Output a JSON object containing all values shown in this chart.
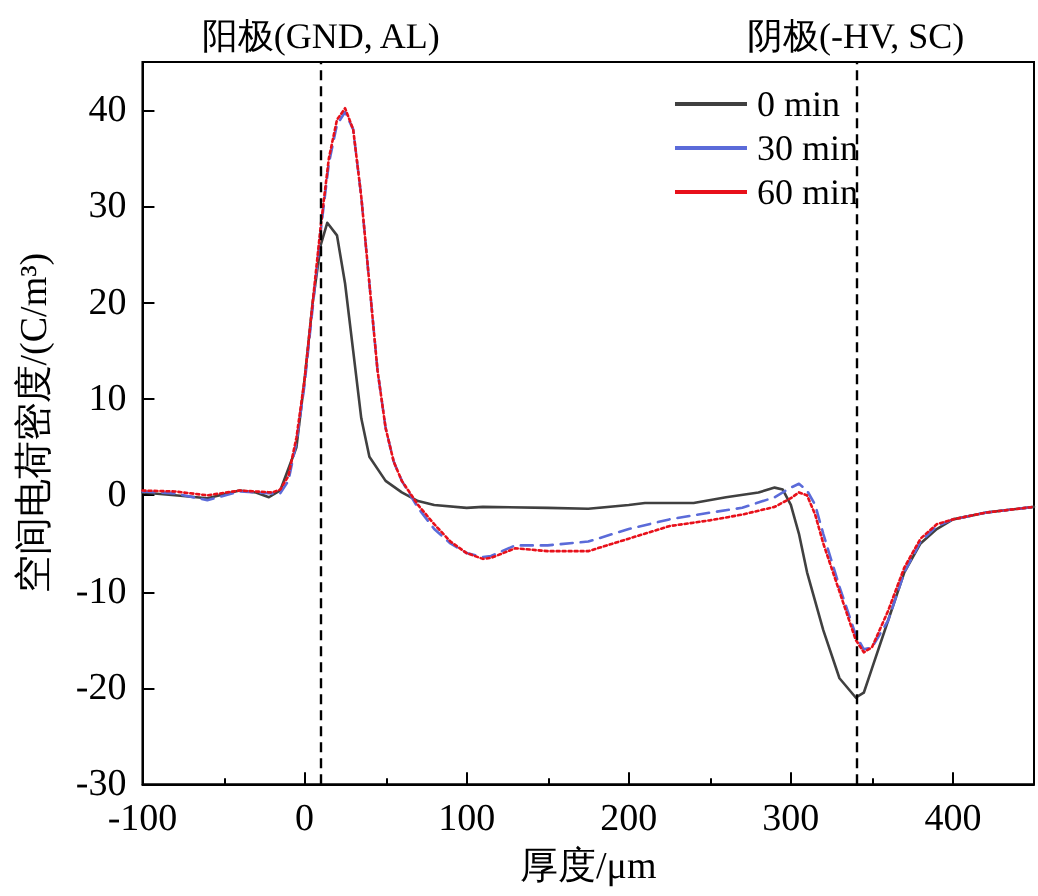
{
  "chart_data": {
    "type": "line",
    "xlabel": "厚度/μm",
    "ylabel": "空间电荷密度/(C/m³)",
    "xlim": [
      -100,
      450
    ],
    "ylim": [
      -30,
      45
    ],
    "xticks": [
      -100,
      0,
      100,
      200,
      300,
      400
    ],
    "yticks": [
      -30,
      -20,
      -10,
      0,
      10,
      20,
      30,
      40
    ],
    "grid": false,
    "legend": "top right",
    "marker": "none",
    "ref_lines": [
      {
        "axis": "x",
        "value": 10,
        "label": "阳极(GND, AL)",
        "color": "#000000",
        "line_style": "dashed"
      },
      {
        "axis": "x",
        "value": 340,
        "label": "阴极(-HV, SC)",
        "color": "#000000",
        "line_style": "dashed"
      }
    ],
    "series": [
      {
        "name": "0 min",
        "color": "#404040",
        "line_style": "solid",
        "x": [
          -100,
          -80,
          -60,
          -40,
          -30,
          -22,
          -15,
          -5,
          0,
          5,
          10,
          14,
          20,
          25,
          30,
          35,
          40,
          50,
          60,
          70,
          80,
          100,
          110,
          150,
          175,
          200,
          210,
          240,
          260,
          280,
          290,
          295,
          300,
          305,
          310,
          320,
          330,
          340,
          345,
          350,
          360,
          370,
          380,
          390,
          400,
          420,
          450
        ],
        "values": [
          0.3,
          0,
          -0.3,
          0.5,
          0.3,
          -0.2,
          0.5,
          5,
          12,
          20,
          26,
          28.3,
          27,
          22,
          15,
          8,
          4,
          1.5,
          0.3,
          -0.6,
          -1,
          -1.3,
          -1.2,
          -1.3,
          -1.4,
          -1,
          -0.8,
          -0.8,
          -0.2,
          0.3,
          0.8,
          0.6,
          -1,
          -4,
          -8,
          -14,
          -19,
          -21,
          -20.5,
          -18,
          -13,
          -8,
          -5,
          -3.5,
          -2.5,
          -1.8,
          -1.2
        ]
      },
      {
        "name": "30 min",
        "color": "#5b6bd9",
        "line_style": "dashed",
        "x": [
          -100,
          -80,
          -60,
          -40,
          -30,
          -20,
          -15,
          -10,
          -5,
          0,
          5,
          10,
          15,
          20,
          25,
          30,
          35,
          40,
          45,
          50,
          55,
          60,
          70,
          80,
          90,
          100,
          110,
          115,
          130,
          150,
          175,
          200,
          225,
          250,
          270,
          290,
          300,
          305,
          310,
          315,
          320,
          330,
          340,
          345,
          350,
          360,
          370,
          380,
          390,
          400,
          420,
          450
        ],
        "values": [
          0.4,
          0.2,
          -0.5,
          0.4,
          0.3,
          0.2,
          0.2,
          1.5,
          5.5,
          11.5,
          19.5,
          27.5,
          34.5,
          38.5,
          39.8,
          38,
          31,
          22,
          13,
          7,
          3.5,
          1.5,
          -1.3,
          -3.5,
          -5,
          -6,
          -6.4,
          -6.3,
          -5.2,
          -5.2,
          -4.8,
          -3.5,
          -2.5,
          -1.8,
          -1.3,
          -0.2,
          0.8,
          1.2,
          0.5,
          -1,
          -4,
          -9.5,
          -14.5,
          -16,
          -15.8,
          -13,
          -8,
          -4.8,
          -3.2,
          -2.5,
          -1.8,
          -1.2
        ]
      },
      {
        "name": "60 min",
        "color": "#e8101a",
        "line_style": "dotted",
        "x": [
          -100,
          -80,
          -60,
          -40,
          -30,
          -20,
          -15,
          -10,
          -5,
          0,
          5,
          10,
          15,
          20,
          25,
          30,
          35,
          40,
          45,
          50,
          55,
          60,
          70,
          80,
          90,
          100,
          110,
          115,
          130,
          150,
          175,
          200,
          225,
          250,
          270,
          290,
          300,
          305,
          310,
          315,
          320,
          330,
          340,
          345,
          350,
          360,
          370,
          380,
          390,
          400,
          420,
          450
        ],
        "values": [
          0.5,
          0.4,
          0,
          0.5,
          0.4,
          0.3,
          0.6,
          2,
          6,
          12,
          20,
          28,
          35,
          39,
          40.2,
          38,
          31,
          22,
          13,
          7,
          3.5,
          1.5,
          -1,
          -3,
          -4.8,
          -6,
          -6.6,
          -6.5,
          -5.5,
          -5.8,
          -5.8,
          -4.5,
          -3.2,
          -2.6,
          -2,
          -1.2,
          -0.3,
          0.3,
          0,
          -2,
          -5,
          -10,
          -15,
          -16.3,
          -15.8,
          -12,
          -7.5,
          -4.5,
          -3,
          -2.5,
          -1.8,
          -1.2
        ]
      }
    ]
  }
}
